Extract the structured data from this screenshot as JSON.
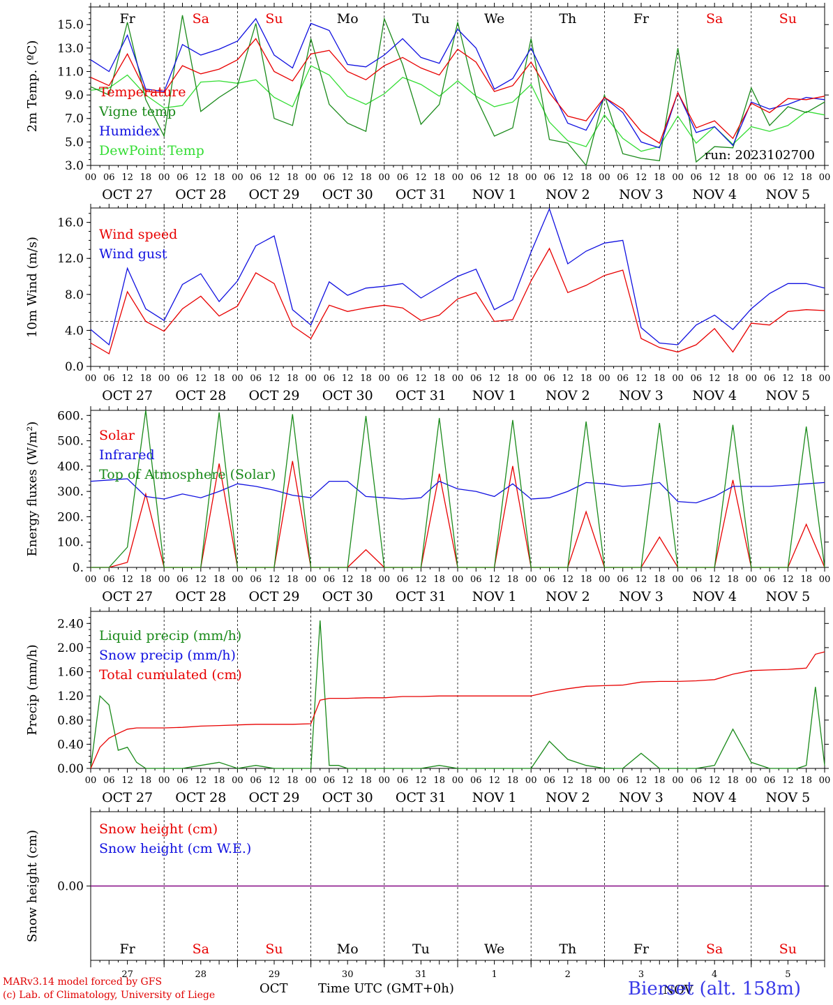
{
  "days": [
    {
      "dow": "Fr",
      "date": "OCT 27",
      "num": "27",
      "weekend": false
    },
    {
      "dow": "Sa",
      "date": "OCT 28",
      "num": "28",
      "weekend": true
    },
    {
      "dow": "Su",
      "date": "OCT 29",
      "num": "29",
      "weekend": true
    },
    {
      "dow": "Mo",
      "date": "OCT 30",
      "num": "30",
      "weekend": false
    },
    {
      "dow": "Tu",
      "date": "OCT 31",
      "num": "31",
      "weekend": false
    },
    {
      "dow": "We",
      "date": "NOV  1",
      "num": "1",
      "weekend": false
    },
    {
      "dow": "Th",
      "date": "NOV  2",
      "num": "2",
      "weekend": false
    },
    {
      "dow": "Fr",
      "date": "NOV  3",
      "num": "3",
      "weekend": false
    },
    {
      "dow": "Sa",
      "date": "NOV  4",
      "num": "4",
      "weekend": true
    },
    {
      "dow": "Su",
      "date": "NOV  5",
      "num": "5",
      "weekend": true
    }
  ],
  "hour_ticks": [
    "00",
    "06",
    "12",
    "18"
  ],
  "colors": {
    "red": "#e80000",
    "green": "#1a8a1a",
    "blue": "#1010e0",
    "lightgreen": "#33dd33",
    "purple": "#800080",
    "weekend": "#e80000"
  },
  "run_label": "run: 2023102700",
  "footer": {
    "model": "MARv3.14 model forced by GFS",
    "credit": "(c) Lab. of Climatology, University of Liege",
    "month": "OCT",
    "month2": "NOV",
    "time_label": "Time UTC (GMT+0h)",
    "station": "Bierset (alt. 158m)"
  },
  "chart_data": [
    {
      "type": "line",
      "ylabel": "2m Temp. (ºC)",
      "ylim": [
        3,
        16.5
      ],
      "yticks": [
        "3.0",
        "5.0",
        "7.0",
        "9.0",
        "11.0",
        "13.0",
        "15.0"
      ],
      "ytick_values": [
        3,
        5,
        7,
        9,
        11,
        13,
        15
      ],
      "x_hours": [
        0,
        6,
        12,
        18,
        24,
        30,
        36,
        42,
        48,
        54,
        60,
        66,
        72,
        78,
        84,
        90,
        96,
        102,
        108,
        114,
        120,
        126,
        132,
        138,
        144,
        150,
        156,
        162,
        168,
        174,
        180,
        186,
        192,
        198,
        204,
        210,
        216,
        222,
        228,
        234,
        240
      ],
      "series": [
        {
          "name": "Temperature",
          "color": "red",
          "values": [
            10.5,
            9.8,
            12.5,
            9.3,
            9.2,
            11.5,
            10.8,
            11.2,
            12,
            13.8,
            11,
            10.2,
            12.5,
            12.8,
            11,
            10.3,
            11.5,
            12.2,
            11.3,
            10.7,
            12.9,
            11.8,
            9.3,
            9.8,
            11.8,
            9.2,
            7.2,
            6.8,
            8.8,
            7.8,
            5.9,
            4.9,
            9.2,
            6.2,
            6.8,
            5.3,
            8.3,
            7.5,
            8.7,
            8.6,
            8.9
          ]
        },
        {
          "name": "Vigne temp",
          "color": "green",
          "values": [
            9.7,
            9,
            15.2,
            8.6,
            5.5,
            15.8,
            7.6,
            8.8,
            9.8,
            15.1,
            7,
            6.4,
            13.8,
            8.2,
            6.6,
            5.9,
            15.5,
            11.6,
            6.5,
            8.2,
            15.2,
            8.8,
            5.5,
            6.2,
            13.8,
            5.2,
            4.9,
            3,
            9,
            4,
            3.6,
            3.4,
            13,
            3.3,
            4.6,
            4.5,
            9.6,
            6.4,
            8,
            7.5,
            8.4
          ]
        },
        {
          "name": "Humidex",
          "color": "blue",
          "values": [
            12,
            11,
            14.1,
            9.5,
            9.3,
            13.3,
            12.4,
            12.9,
            13.6,
            15.5,
            12.4,
            11.3,
            15.1,
            14.5,
            11.6,
            11.4,
            12.4,
            13.8,
            12.2,
            11.7,
            14.6,
            13,
            9.5,
            10.4,
            13,
            9.8,
            6.6,
            6,
            8.8,
            7.5,
            5,
            4.5,
            9.2,
            5.8,
            6.3,
            4.7,
            8.4,
            7.8,
            8.2,
            8.8,
            8.6
          ]
        },
        {
          "name": "DewPoint Temp",
          "color": "lightgreen",
          "values": [
            9.4,
            9.6,
            10.7,
            9,
            7.9,
            8.1,
            10.1,
            10.2,
            10,
            10.3,
            8.8,
            8,
            11.5,
            10.7,
            8.9,
            8.2,
            9.1,
            10.5,
            9.9,
            8.9,
            10.2,
            8.9,
            8,
            8.4,
            9.9,
            6.7,
            5.1,
            4.6,
            7.3,
            5.3,
            4.2,
            4.6,
            7.2,
            4.9,
            6.3,
            4.8,
            6.3,
            5.9,
            6.4,
            7.6,
            7.3
          ]
        }
      ]
    },
    {
      "type": "line",
      "ylabel": "10m Wind (m/s)",
      "ylim": [
        0,
        17.6
      ],
      "yticks": [
        "0.0",
        "4.0",
        "8.0",
        "12.0",
        "16.0"
      ],
      "ytick_values": [
        0,
        4,
        8,
        12,
        16
      ],
      "reference_line": 5,
      "x_hours": [
        0,
        6,
        12,
        18,
        24,
        30,
        36,
        42,
        48,
        54,
        60,
        66,
        72,
        78,
        84,
        90,
        96,
        102,
        108,
        114,
        120,
        126,
        132,
        138,
        144,
        150,
        156,
        162,
        168,
        174,
        180,
        186,
        192,
        198,
        204,
        210,
        216,
        222,
        228,
        234,
        240
      ],
      "series": [
        {
          "name": "Wind speed",
          "color": "red",
          "values": [
            2.6,
            1.4,
            8.3,
            5,
            3.9,
            6.4,
            7.8,
            5.6,
            6.7,
            10.4,
            9.2,
            4.5,
            3.1,
            6.8,
            6.1,
            6.5,
            6.8,
            6.5,
            5.1,
            5.7,
            7.5,
            8.2,
            5,
            5.2,
            9.5,
            13.1,
            8.2,
            9,
            10.1,
            10.7,
            3.1,
            2.1,
            1.6,
            2.4,
            4.2,
            1.6,
            4.8,
            4.6,
            6.1,
            6.3,
            6.2
          ]
        },
        {
          "name": "Wind gust",
          "color": "blue",
          "values": [
            4.1,
            2.4,
            10.9,
            6.4,
            5.1,
            9.1,
            10.3,
            7.2,
            9.5,
            13.4,
            14.5,
            6.3,
            4.6,
            9.4,
            7.9,
            8.7,
            8.9,
            9.2,
            7.6,
            8.8,
            10,
            10.8,
            6.3,
            7.4,
            12.7,
            17.5,
            11.4,
            12.8,
            13.7,
            14,
            4.3,
            2.6,
            2.4,
            4.6,
            5.7,
            4.1,
            6.4,
            8.1,
            9.2,
            9.2,
            8.7
          ]
        }
      ]
    },
    {
      "type": "line",
      "ylabel": "Energy fluxes (W/m²)",
      "ylim": [
        0,
        620
      ],
      "yticks": [
        "0.",
        "100.",
        "200.",
        "300.",
        "400.",
        "500.",
        "600."
      ],
      "ytick_values": [
        0,
        100,
        200,
        300,
        400,
        500,
        600
      ],
      "x_hours": [
        0,
        6,
        12,
        18,
        24,
        30,
        36,
        42,
        48,
        54,
        60,
        66,
        72,
        78,
        84,
        90,
        96,
        102,
        108,
        114,
        120,
        126,
        132,
        138,
        144,
        150,
        156,
        162,
        168,
        174,
        180,
        186,
        192,
        198,
        204,
        210,
        216,
        222,
        228,
        234,
        240
      ],
      "series": [
        {
          "name": "Solar",
          "color": "red",
          "values": [
            0,
            0,
            20,
            290,
            0,
            0,
            0,
            410,
            0,
            0,
            0,
            420,
            0,
            0,
            0,
            70,
            0,
            0,
            0,
            370,
            0,
            0,
            0,
            400,
            0,
            0,
            0,
            220,
            0,
            0,
            0,
            120,
            0,
            0,
            0,
            345,
            0,
            0,
            0,
            170,
            0
          ]
        },
        {
          "name": "Infrared",
          "color": "blue",
          "values": [
            340,
            345,
            350,
            280,
            270,
            290,
            275,
            300,
            330,
            320,
            305,
            285,
            275,
            340,
            340,
            280,
            275,
            270,
            275,
            340,
            310,
            300,
            280,
            330,
            270,
            275,
            300,
            335,
            330,
            320,
            325,
            335,
            260,
            255,
            280,
            320,
            320,
            320,
            325,
            330,
            335
          ]
        },
        {
          "name": "Top of Atmosphere (Solar)",
          "color": "green",
          "values": [
            0,
            0,
            80,
            620,
            0,
            0,
            0,
            612,
            0,
            0,
            0,
            605,
            0,
            0,
            0,
            598,
            0,
            0,
            0,
            590,
            0,
            0,
            0,
            582,
            0,
            0,
            0,
            576,
            0,
            0,
            0,
            570,
            0,
            0,
            0,
            563,
            0,
            0,
            0,
            556,
            0
          ]
        }
      ]
    },
    {
      "type": "line",
      "ylabel": "Precip (mm/h)",
      "ylim": [
        0,
        2.6
      ],
      "yticks": [
        "0.00",
        "0.40",
        "0.80",
        "1.20",
        "1.60",
        "2.00",
        "2.40"
      ],
      "ytick_values": [
        0,
        0.4,
        0.8,
        1.2,
        1.6,
        2,
        2.4
      ],
      "x_hours": [
        0,
        3,
        6,
        9,
        12,
        15,
        18,
        24,
        30,
        36,
        42,
        48,
        54,
        60,
        66,
        72,
        75,
        78,
        81,
        84,
        90,
        96,
        102,
        108,
        114,
        120,
        126,
        132,
        138,
        144,
        150,
        156,
        162,
        168,
        174,
        180,
        186,
        192,
        198,
        204,
        210,
        216,
        222,
        228,
        231,
        234,
        237,
        240
      ],
      "series": [
        {
          "name": "Liquid precip (mm/h)",
          "color": "green",
          "values": [
            0,
            1.2,
            1.05,
            0.3,
            0.35,
            0.1,
            0,
            0,
            0,
            0.05,
            0.1,
            0,
            0.05,
            0,
            0,
            0,
            2.45,
            0.05,
            0.05,
            0,
            0,
            0,
            0,
            0,
            0.05,
            0,
            0,
            0,
            0,
            0,
            0.45,
            0.15,
            0.05,
            0,
            0,
            0.25,
            0,
            0,
            0,
            0.05,
            0.65,
            0.1,
            0,
            0,
            0,
            0.05,
            1.35,
            0.05
          ]
        },
        {
          "name": "Total cumulated (cm)",
          "color": "red",
          "values": [
            0,
            0.35,
            0.5,
            0.58,
            0.65,
            0.67,
            0.67,
            0.67,
            0.68,
            0.7,
            0.71,
            0.72,
            0.73,
            0.73,
            0.73,
            0.74,
            1.13,
            1.16,
            1.16,
            1.16,
            1.17,
            1.17,
            1.19,
            1.19,
            1.2,
            1.2,
            1.2,
            1.2,
            1.2,
            1.2,
            1.27,
            1.32,
            1.36,
            1.37,
            1.38,
            1.43,
            1.44,
            1.44,
            1.45,
            1.47,
            1.56,
            1.62,
            1.63,
            1.64,
            1.65,
            1.66,
            1.89,
            1.93
          ]
        },
        {
          "name": "Snow precip (mm/h)",
          "color": "blue",
          "values": []
        }
      ]
    },
    {
      "type": "line",
      "ylabel": "Snow height (cm)",
      "ylim": [
        -1,
        1
      ],
      "yticks": [
        "0.00"
      ],
      "ytick_values": [
        0
      ],
      "x_hours": [
        0,
        240
      ],
      "series": [
        {
          "name": "Snow height (cm)",
          "color": "red",
          "values": [
            0,
            0
          ]
        },
        {
          "name": "Snow height (cm W.E.)",
          "color": "blue",
          "values": [
            0,
            0
          ]
        }
      ]
    }
  ]
}
